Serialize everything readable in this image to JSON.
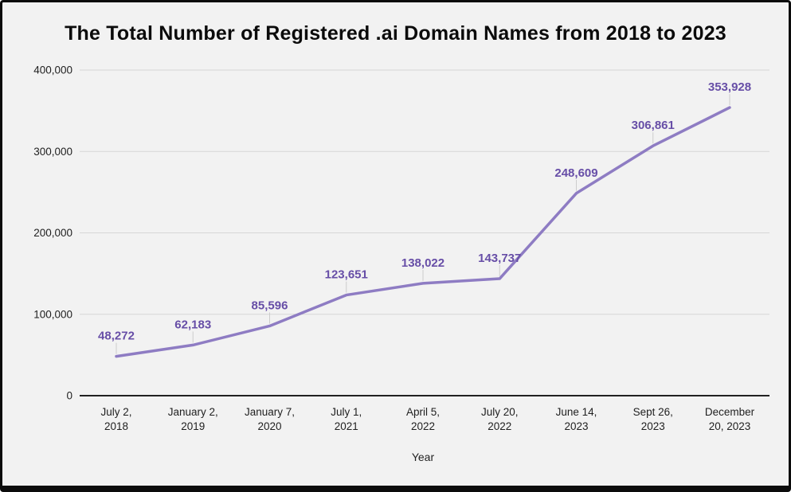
{
  "chart_data": {
    "type": "line",
    "title": "The Total Number of Registered .ai Domain Names from 2018 to 2023",
    "xlabel": "Year",
    "ylabel": "",
    "categories": [
      "July 2, 2018",
      "January 2, 2019",
      "January 7, 2020",
      "July 1, 2021",
      "April 5, 2022",
      "July 20, 2022",
      "June 14, 2023",
      "Sept 26, 2023",
      "December 20, 2023"
    ],
    "x_tick_lines": [
      [
        "July 2,",
        "2018"
      ],
      [
        "January 2,",
        "2019"
      ],
      [
        "January 7,",
        "2020"
      ],
      [
        "July 1,",
        "2021"
      ],
      [
        "April 5,",
        "2022"
      ],
      [
        "July 20,",
        "2022"
      ],
      [
        "June 14,",
        "2023"
      ],
      [
        "Sept 26,",
        "2023"
      ],
      [
        "December",
        "20, 2023"
      ]
    ],
    "values": [
      48272,
      62183,
      85596,
      123651,
      138022,
      143737,
      248609,
      306861,
      353928
    ],
    "value_labels": [
      "48,272",
      "62,183",
      "85,596",
      "123,651",
      "138,022",
      "143,737",
      "248,609",
      "306,861",
      "353,928"
    ],
    "y_ticks": [
      0,
      100000,
      200000,
      300000,
      400000
    ],
    "y_tick_labels": [
      "0",
      "100,000",
      "200,000",
      "300,000",
      "400,000"
    ],
    "ylim": [
      0,
      400000
    ],
    "grid": true,
    "legend_position": "none",
    "colors": {
      "line": "#8e7cc3",
      "value_label": "#674ea7",
      "grid": "#d6d6d6",
      "leader": "#cccccc",
      "baseline": "#212121",
      "tick_text": "#1f1f1f",
      "background": "#f2f2f2",
      "frame": "#0c0c0c",
      "title_text": "#0b0b0b"
    }
  }
}
